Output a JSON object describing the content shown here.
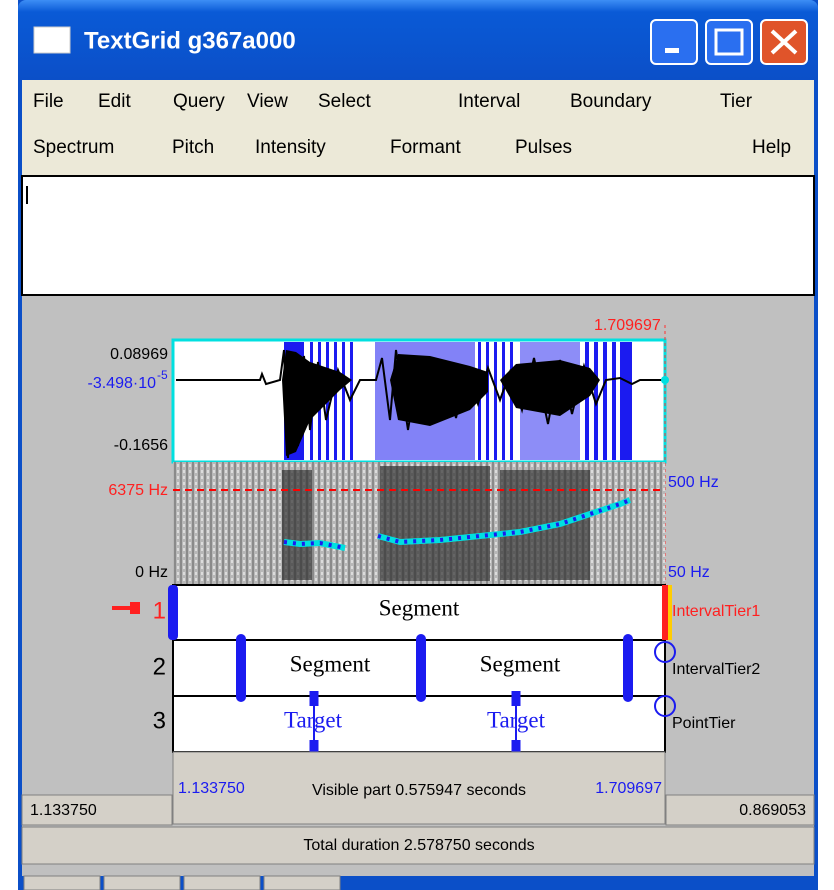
{
  "window": {
    "title": "TextGrid g367a000"
  },
  "menu": {
    "row1": [
      "File",
      "Edit",
      "Query",
      "View",
      "Select",
      "Interval",
      "Boundary",
      "Tier"
    ],
    "row2": [
      "Spectrum",
      "Pitch",
      "Intensity",
      "Formant",
      "Pulses",
      "Help"
    ]
  },
  "editor": {
    "cursor_time": "1.709697",
    "wave_max": "0.08969",
    "wave_cursor": {
      "base": "-3.498·10",
      "exponent": "-5"
    },
    "wave_min": "-0.1656",
    "spec_max": "6375 Hz",
    "spec_min": "0 Hz",
    "pitch_max": "500 Hz",
    "pitch_min": "50 Hz",
    "tiers": [
      {
        "number": "1",
        "name": "IntervalTier1",
        "labels": [
          "Segment"
        ]
      },
      {
        "number": "2",
        "name": "IntervalTier2",
        "labels": [
          "Segment",
          "Segment"
        ]
      },
      {
        "number": "3",
        "name": "PointTier",
        "labels": [
          "Target",
          "Target"
        ]
      }
    ],
    "footer": {
      "left": "1.133750",
      "visible_start": "1.133750",
      "visible": "Visible part 0.575947 seconds",
      "visible_end": "1.709697",
      "right": "0.869053",
      "total": "Total duration 2.578750 seconds"
    }
  }
}
